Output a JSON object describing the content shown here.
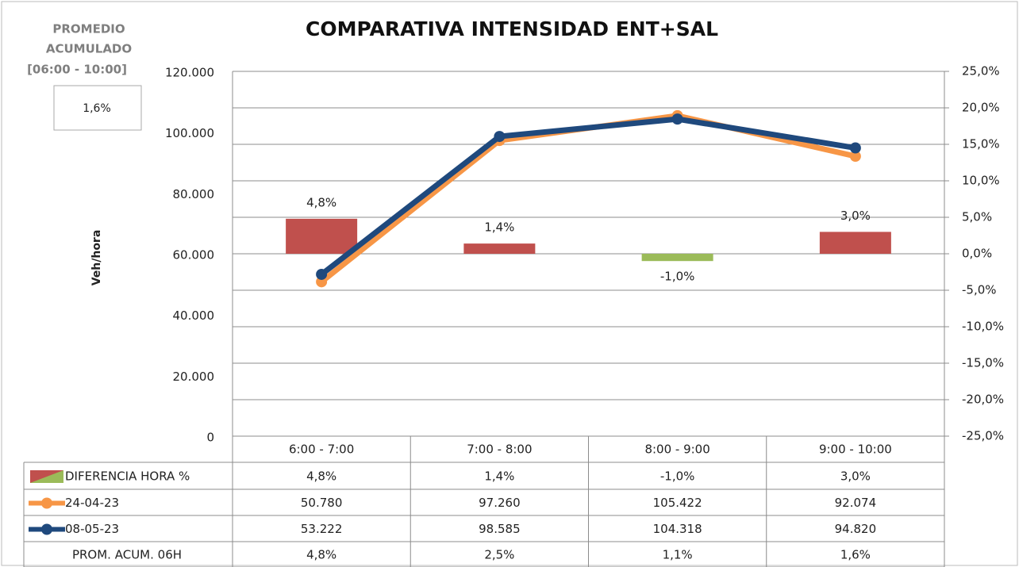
{
  "chart_data": {
    "type": "combo",
    "title": "COMPARATIVA INTENSIDAD ENT+SAL",
    "side_label": [
      "PROMEDIO",
      "ACUMULADO",
      "[06:00 - 10:00]"
    ],
    "side_value": "1,6%",
    "y_label": "Veh/hora",
    "categories": [
      "6:00 - 7:00",
      "7:00 - 8:00",
      "8:00 - 9:00",
      "9:00 - 10:00"
    ],
    "ylim": [
      0,
      120000
    ],
    "yticks": [
      0,
      {
        "value": 20000,
        "label": "20.000"
      },
      {
        "value": 40000,
        "label": "40.000"
      },
      {
        "value": 60000,
        "label": "60.000"
      },
      {
        "value": 80000,
        "label": "80.000"
      },
      {
        "value": 100000,
        "label": "100.000"
      },
      {
        "value": 120000,
        "label": "120.000"
      }
    ],
    "y2lim": [
      -25,
      25
    ],
    "y2ticks": [
      {
        "value": -25,
        "label": "-25,0%"
      },
      {
        "value": -20,
        "label": "-20,0%"
      },
      {
        "value": -15,
        "label": "-15,0%"
      },
      {
        "value": -10,
        "label": "-10,0%"
      },
      {
        "value": -5,
        "label": "-5,0%"
      },
      {
        "value": 0,
        "label": "0,0%"
      },
      {
        "value": 5,
        "label": "5,0%"
      },
      {
        "value": 10,
        "label": "10,0%"
      },
      {
        "value": 15,
        "label": "15,0%"
      },
      {
        "value": 20,
        "label": "20,0%"
      },
      {
        "value": 25,
        "label": "25,0%"
      }
    ],
    "grid": true,
    "series": [
      {
        "name": "DIFERENCIA HORA %",
        "type": "bar",
        "axis": "y2",
        "color": "#c0504d",
        "negative_color": "#9bbb59",
        "values": [
          4.8,
          1.4,
          -1.0,
          3.0
        ],
        "value_labels": [
          "4,8%",
          "1,4%",
          "-1,0%",
          "3,0%"
        ]
      },
      {
        "name": "24-04-23",
        "type": "line",
        "color": "#f79646",
        "values": [
          50780,
          97260,
          105422,
          92074
        ],
        "value_labels": [
          "50.780",
          "97.260",
          "105.422",
          "92.074"
        ]
      },
      {
        "name": "08-05-23",
        "type": "line",
        "color": "#1f497d",
        "values": [
          53222,
          98585,
          104318,
          94820
        ],
        "value_labels": [
          "53.222",
          "98.585",
          "104.318",
          "94.820"
        ]
      },
      {
        "name": "PROM. ACUM. 06H",
        "values": [
          4.8,
          2.5,
          1.1,
          1.6
        ],
        "value_labels": [
          "4,8%",
          "2,5%",
          "1,1%",
          "1,6%"
        ]
      }
    ]
  }
}
